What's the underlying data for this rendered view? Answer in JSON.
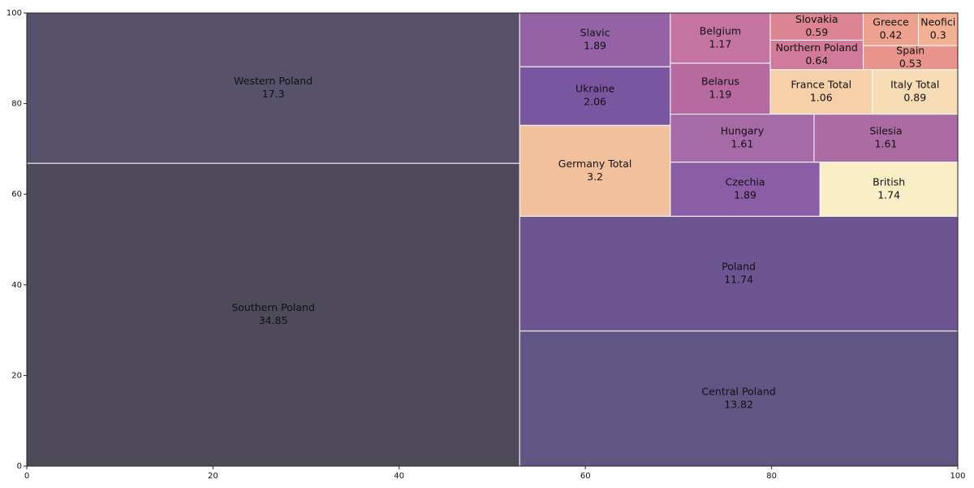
{
  "chart_data": {
    "type": "treemap",
    "categories": [
      "Southern Poland",
      "Western Poland",
      "Central Poland",
      "Poland",
      "Germany Total",
      "Ukraine",
      "Slavic",
      "Czechia",
      "British",
      "Hungary",
      "Silesia",
      "Belarus",
      "Belgium",
      "France Total",
      "Italy Total",
      "Northern Poland",
      "Slovakia",
      "Spain",
      "Greece",
      "Neofici"
    ],
    "values": [
      34.85,
      17.3,
      13.82,
      11.74,
      3.2,
      2.06,
      1.89,
      1.89,
      1.74,
      1.61,
      1.61,
      1.19,
      1.17,
      1.06,
      0.89,
      0.64,
      0.59,
      0.53,
      0.42,
      0.3
    ],
    "colors": [
      "#4e4a5a",
      "#57516c",
      "#615683",
      "#6c5591",
      "#f3c09e",
      "#7b56a0",
      "#9562a6",
      "#8b5da6",
      "#faeec6",
      "#a66aa6",
      "#ad6ba4",
      "#b66aa0",
      "#c474a0",
      "#f5d0a8",
      "#f7dcb6",
      "#d17a99",
      "#dc8491",
      "#e8948d",
      "#eea18e",
      "#f2b095"
    ],
    "xlim": [
      0,
      100
    ],
    "ylim": [
      0,
      100
    ],
    "xticks": [
      0,
      20,
      40,
      60,
      80,
      100
    ],
    "yticks": [
      0,
      20,
      40,
      60,
      80,
      100
    ]
  }
}
